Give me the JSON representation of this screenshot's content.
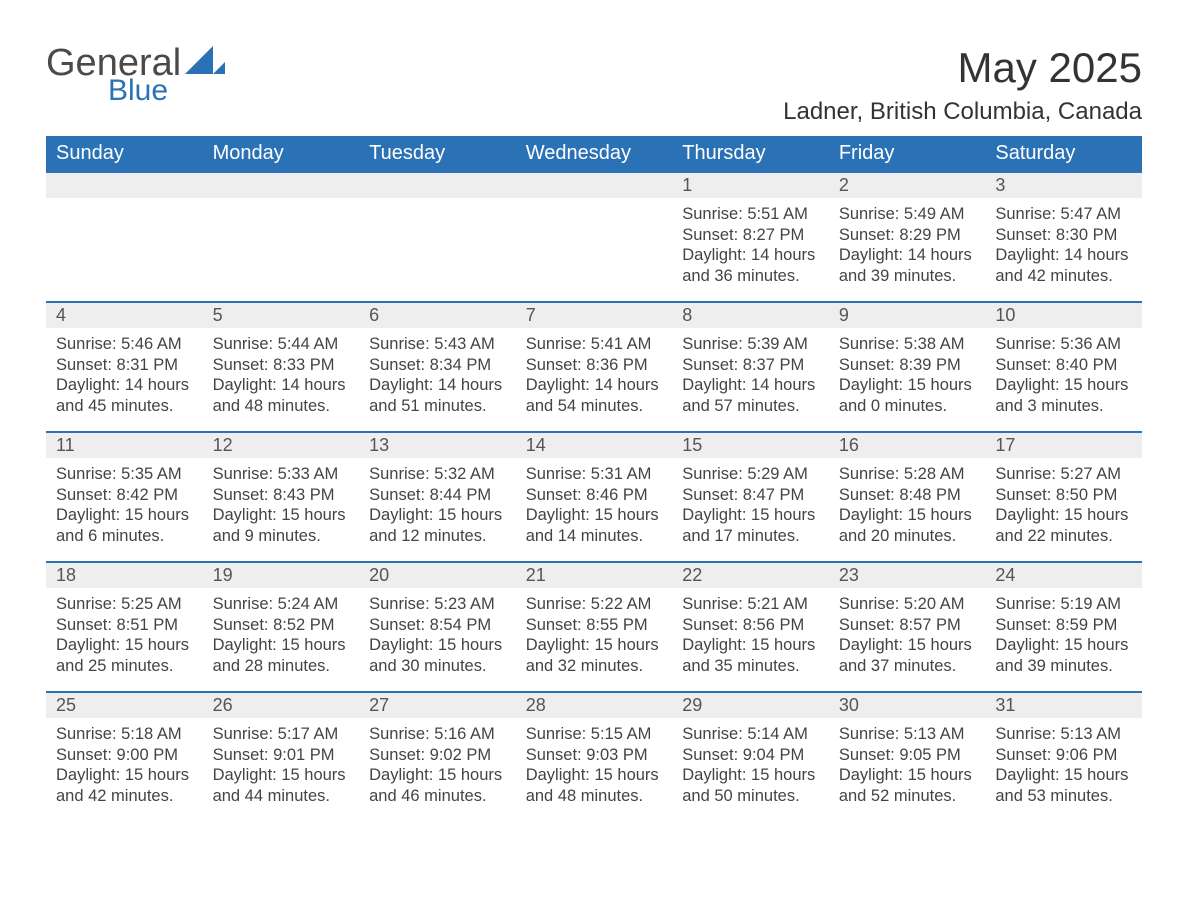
{
  "brand": {
    "word1": "General",
    "word2": "Blue"
  },
  "title": "May 2025",
  "location": "Ladner, British Columbia, Canada",
  "colors": {
    "header_bg": "#2a72b5",
    "header_text": "#ffffff",
    "daynum_bg": "#eeeeee",
    "row_border": "#2a72b5",
    "body_text": "#444444",
    "page_bg": "#ffffff"
  },
  "weekdays": [
    "Sunday",
    "Monday",
    "Tuesday",
    "Wednesday",
    "Thursday",
    "Friday",
    "Saturday"
  ],
  "weeks": [
    [
      {
        "day": null
      },
      {
        "day": null
      },
      {
        "day": null
      },
      {
        "day": null
      },
      {
        "day": 1,
        "sunrise": "5:51 AM",
        "sunset": "8:27 PM",
        "daylight": "14 hours and 36 minutes."
      },
      {
        "day": 2,
        "sunrise": "5:49 AM",
        "sunset": "8:29 PM",
        "daylight": "14 hours and 39 minutes."
      },
      {
        "day": 3,
        "sunrise": "5:47 AM",
        "sunset": "8:30 PM",
        "daylight": "14 hours and 42 minutes."
      }
    ],
    [
      {
        "day": 4,
        "sunrise": "5:46 AM",
        "sunset": "8:31 PM",
        "daylight": "14 hours and 45 minutes."
      },
      {
        "day": 5,
        "sunrise": "5:44 AM",
        "sunset": "8:33 PM",
        "daylight": "14 hours and 48 minutes."
      },
      {
        "day": 6,
        "sunrise": "5:43 AM",
        "sunset": "8:34 PM",
        "daylight": "14 hours and 51 minutes."
      },
      {
        "day": 7,
        "sunrise": "5:41 AM",
        "sunset": "8:36 PM",
        "daylight": "14 hours and 54 minutes."
      },
      {
        "day": 8,
        "sunrise": "5:39 AM",
        "sunset": "8:37 PM",
        "daylight": "14 hours and 57 minutes."
      },
      {
        "day": 9,
        "sunrise": "5:38 AM",
        "sunset": "8:39 PM",
        "daylight": "15 hours and 0 minutes."
      },
      {
        "day": 10,
        "sunrise": "5:36 AM",
        "sunset": "8:40 PM",
        "daylight": "15 hours and 3 minutes."
      }
    ],
    [
      {
        "day": 11,
        "sunrise": "5:35 AM",
        "sunset": "8:42 PM",
        "daylight": "15 hours and 6 minutes."
      },
      {
        "day": 12,
        "sunrise": "5:33 AM",
        "sunset": "8:43 PM",
        "daylight": "15 hours and 9 minutes."
      },
      {
        "day": 13,
        "sunrise": "5:32 AM",
        "sunset": "8:44 PM",
        "daylight": "15 hours and 12 minutes."
      },
      {
        "day": 14,
        "sunrise": "5:31 AM",
        "sunset": "8:46 PM",
        "daylight": "15 hours and 14 minutes."
      },
      {
        "day": 15,
        "sunrise": "5:29 AM",
        "sunset": "8:47 PM",
        "daylight": "15 hours and 17 minutes."
      },
      {
        "day": 16,
        "sunrise": "5:28 AM",
        "sunset": "8:48 PM",
        "daylight": "15 hours and 20 minutes."
      },
      {
        "day": 17,
        "sunrise": "5:27 AM",
        "sunset": "8:50 PM",
        "daylight": "15 hours and 22 minutes."
      }
    ],
    [
      {
        "day": 18,
        "sunrise": "5:25 AM",
        "sunset": "8:51 PM",
        "daylight": "15 hours and 25 minutes."
      },
      {
        "day": 19,
        "sunrise": "5:24 AM",
        "sunset": "8:52 PM",
        "daylight": "15 hours and 28 minutes."
      },
      {
        "day": 20,
        "sunrise": "5:23 AM",
        "sunset": "8:54 PM",
        "daylight": "15 hours and 30 minutes."
      },
      {
        "day": 21,
        "sunrise": "5:22 AM",
        "sunset": "8:55 PM",
        "daylight": "15 hours and 32 minutes."
      },
      {
        "day": 22,
        "sunrise": "5:21 AM",
        "sunset": "8:56 PM",
        "daylight": "15 hours and 35 minutes."
      },
      {
        "day": 23,
        "sunrise": "5:20 AM",
        "sunset": "8:57 PM",
        "daylight": "15 hours and 37 minutes."
      },
      {
        "day": 24,
        "sunrise": "5:19 AM",
        "sunset": "8:59 PM",
        "daylight": "15 hours and 39 minutes."
      }
    ],
    [
      {
        "day": 25,
        "sunrise": "5:18 AM",
        "sunset": "9:00 PM",
        "daylight": "15 hours and 42 minutes."
      },
      {
        "day": 26,
        "sunrise": "5:17 AM",
        "sunset": "9:01 PM",
        "daylight": "15 hours and 44 minutes."
      },
      {
        "day": 27,
        "sunrise": "5:16 AM",
        "sunset": "9:02 PM",
        "daylight": "15 hours and 46 minutes."
      },
      {
        "day": 28,
        "sunrise": "5:15 AM",
        "sunset": "9:03 PM",
        "daylight": "15 hours and 48 minutes."
      },
      {
        "day": 29,
        "sunrise": "5:14 AM",
        "sunset": "9:04 PM",
        "daylight": "15 hours and 50 minutes."
      },
      {
        "day": 30,
        "sunrise": "5:13 AM",
        "sunset": "9:05 PM",
        "daylight": "15 hours and 52 minutes."
      },
      {
        "day": 31,
        "sunrise": "5:13 AM",
        "sunset": "9:06 PM",
        "daylight": "15 hours and 53 minutes."
      }
    ]
  ],
  "labels": {
    "sunrise": "Sunrise: ",
    "sunset": "Sunset: ",
    "daylight": "Daylight: "
  }
}
